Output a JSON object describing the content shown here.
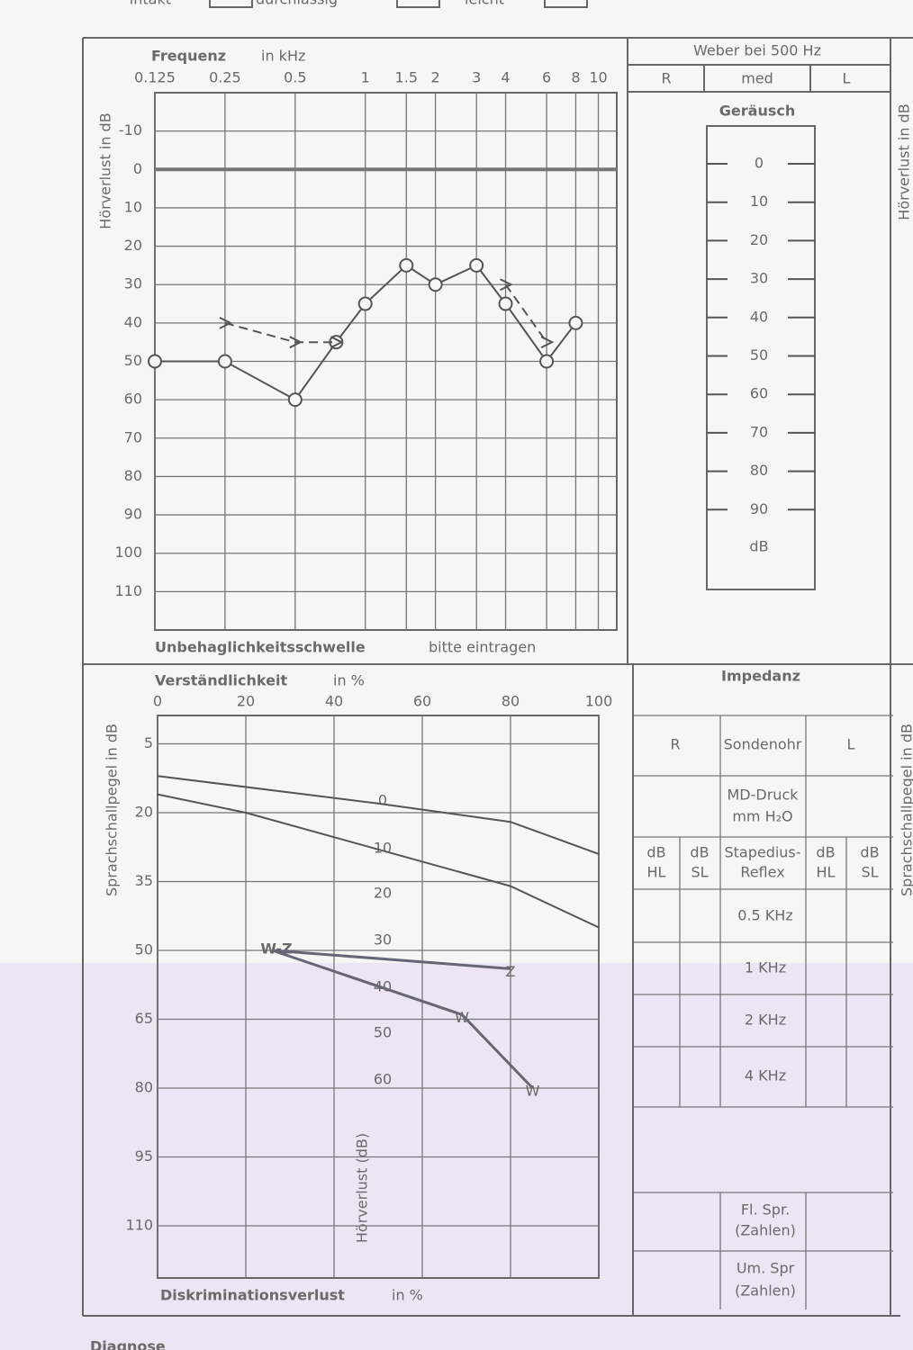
{
  "header": {
    "top_labels": [
      "intakt",
      "durchlässig",
      "leicht"
    ]
  },
  "chart_data": [
    {
      "type": "line",
      "title": "Frequenz",
      "x_unit": "in kHz",
      "ylabel": "Hörverlust in dB",
      "footer": "Unbehaglichkeitsschwelle",
      "footer_note": "bitte eintragen",
      "log_x": true,
      "xlim": [
        0.125,
        12
      ],
      "xticks": [
        0.125,
        0.25,
        0.5,
        1,
        1.5,
        2,
        3,
        4,
        6,
        8,
        10
      ],
      "ylim": [
        -20,
        120
      ],
      "y_inverted": true,
      "yticks": [
        -10,
        0,
        10,
        20,
        30,
        40,
        50,
        60,
        70,
        80,
        90,
        100,
        110
      ],
      "grid": true,
      "zero_line": true,
      "series": [
        {
          "x": [
            0.125,
            0.25,
            0.5,
            0.75,
            1,
            1.5,
            2,
            3,
            4,
            6,
            8
          ],
          "values": [
            50,
            50,
            60,
            45,
            35,
            25,
            30,
            25,
            35,
            50,
            40
          ],
          "color": "#555555",
          "marker": "circle",
          "dashed": false
        },
        {
          "x": [
            0.25,
            0.5,
            0.75,
            null,
            4,
            6
          ],
          "values": [
            40,
            45,
            45,
            null,
            30,
            45
          ],
          "color": "#555555",
          "marker": "cross",
          "dashed": true
        }
      ]
    },
    {
      "type": "line",
      "title": "Verständlichkeit",
      "x_unit": "in %",
      "ylabel": "Sprachschallpegel in dB",
      "footer": "Diskriminationsverlust",
      "footer_note": "in %",
      "center_label": "Hörverlust (dB)",
      "xlim": [
        0,
        100
      ],
      "xticks": [
        0,
        20,
        40,
        60,
        80,
        100
      ],
      "ylim": [
        0,
        120
      ],
      "y_inverted": true,
      "yticks": [
        5,
        20,
        35,
        50,
        65,
        80,
        95,
        110
      ],
      "grid": true,
      "loss_labels": [
        0,
        10,
        20,
        30,
        40,
        50,
        60
      ],
      "start_label": "W-Z",
      "series": [
        {
          "x": [
            0,
            50,
            80,
            100
          ],
          "values": [
            12,
            18,
            22,
            29
          ],
          "color": "#555555",
          "dashed": false
        },
        {
          "x": [
            0,
            20,
            50,
            80,
            100
          ],
          "values": [
            16,
            20,
            28,
            36,
            45
          ],
          "color": "#555555",
          "dashed": false
        },
        {
          "x": [
            26,
            80
          ],
          "values": [
            50,
            54
          ],
          "color": "#666677",
          "marker": "Z",
          "dashed": false
        },
        {
          "x": [
            26,
            69,
            85
          ],
          "values": [
            50,
            64,
            80
          ],
          "color": "#666677",
          "marker": "W",
          "dashed": false
        }
      ]
    }
  ],
  "weber": {
    "title": "Weber bei 500 Hz",
    "cells": [
      "R",
      "med",
      "L"
    ]
  },
  "geraeusch": {
    "title": "Geräusch",
    "ticks": [
      0,
      10,
      20,
      30,
      40,
      50,
      60,
      70,
      80,
      90
    ],
    "unit": "dB"
  },
  "impedanz": {
    "title": "Impedanz",
    "header": [
      "R",
      "Sondenohr",
      "L"
    ],
    "druck": [
      "MD-Druck",
      "mm H₂O"
    ],
    "reflex_header": [
      [
        "dB",
        "HL"
      ],
      [
        "dB",
        "SL"
      ],
      [
        "Stapedius-",
        "Reflex"
      ],
      [
        "dB",
        "HL"
      ],
      [
        "dB",
        "SL"
      ]
    ],
    "rows": [
      "0.5 KHz",
      "1 KHz",
      "2 KHz",
      "4 KHz"
    ],
    "footer": [
      [
        "Fl. Spr.",
        "(Zahlen)"
      ],
      [
        "Um. Spr",
        "(Zahlen)"
      ]
    ]
  },
  "right_labels": [
    "Hörverlust in dB",
    "Sprachschallpegel in dB"
  ],
  "diagnose": "Diagnose"
}
